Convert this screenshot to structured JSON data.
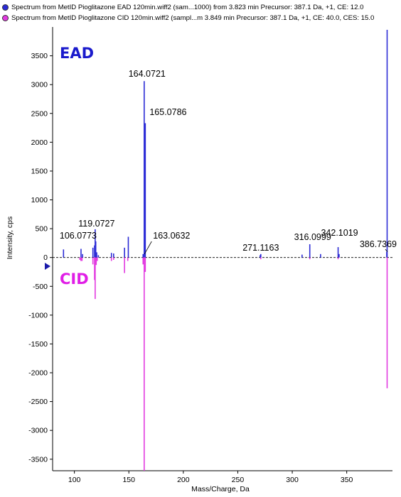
{
  "legend": [
    {
      "text": "Spectrum from MetID Pioglitazone EAD 120min.wiff2 (sam...1000) from 3.823 min Precursor: 387.1 Da, +1, CE: 12.0",
      "color": "#2b2bd6"
    },
    {
      "text": "Spectrum from MetID Pioglitazone CID 120min.wiff2 (sampl...m 3.849 min Precursor: 387.1 Da, +1, CE: 40.0, CES: 15.0",
      "color": "#e23ae0"
    }
  ],
  "labels": {
    "ead": "EAD",
    "cid": "CID"
  },
  "colors": {
    "ead": "#2b2bd6",
    "cid": "#e23ae0",
    "ead_label": "#1a1acc",
    "cid_label": "#e01ee6"
  },
  "chart_data": {
    "type": "bar",
    "xlabel": "Mass/Charge, Da",
    "ylabel": "Intensity, cps",
    "xlim": [
      80,
      392
    ],
    "ylim": [
      -3700,
      4000
    ],
    "xticks": [
      100,
      150,
      200,
      250,
      300,
      350
    ],
    "yticks": [
      3500,
      3000,
      2500,
      2000,
      1500,
      1000,
      500,
      0,
      -500,
      -1000,
      -1500,
      -2000,
      -2500,
      -3000,
      -3500
    ],
    "series": [
      {
        "name": "EAD",
        "peaks": [
          {
            "mz": 90.0,
            "i": 140
          },
          {
            "mz": 106.0773,
            "i": 150
          },
          {
            "mz": 107.5,
            "i": 60
          },
          {
            "mz": 117.0,
            "i": 170
          },
          {
            "mz": 118.5,
            "i": 210
          },
          {
            "mz": 119.0727,
            "i": 490
          },
          {
            "mz": 119.6,
            "i": 280
          },
          {
            "mz": 120.5,
            "i": 90
          },
          {
            "mz": 122.0,
            "i": 40
          },
          {
            "mz": 134.0,
            "i": 80
          },
          {
            "mz": 136.0,
            "i": 70
          },
          {
            "mz": 146.0,
            "i": 170
          },
          {
            "mz": 149.5,
            "i": 360
          },
          {
            "mz": 163.0632,
            "i": 60
          },
          {
            "mz": 164.0721,
            "i": 3060
          },
          {
            "mz": 165.0786,
            "i": 2330
          },
          {
            "mz": 270.5,
            "i": 40
          },
          {
            "mz": 271.1163,
            "i": 60
          },
          {
            "mz": 309.0,
            "i": 50
          },
          {
            "mz": 316.0999,
            "i": 230
          },
          {
            "mz": 326.0,
            "i": 60
          },
          {
            "mz": 342.1019,
            "i": 180
          },
          {
            "mz": 343.0,
            "i": 60
          },
          {
            "mz": 386.7369,
            "i": 100
          },
          {
            "mz": 387.1,
            "i": 3950
          }
        ],
        "labelled": [
          {
            "mz": 106.0773,
            "text": "106.0773"
          },
          {
            "mz": 119.0727,
            "text": "119.0727"
          },
          {
            "mz": 163.0632,
            "text": "163.0632"
          },
          {
            "mz": 164.0721,
            "text": "164.0721"
          },
          {
            "mz": 165.0786,
            "text": "165.0786"
          },
          {
            "mz": 271.1163,
            "text": "271.1163"
          },
          {
            "mz": 316.0999,
            "text": "316.0999"
          },
          {
            "mz": 342.1019,
            "text": "342.1019"
          },
          {
            "mz": 386.7369,
            "text": "386.7369"
          }
        ]
      },
      {
        "name": "CID",
        "peaks": [
          {
            "mz": 105.0,
            "i": -40
          },
          {
            "mz": 106.0,
            "i": -60
          },
          {
            "mz": 107.0,
            "i": -60
          },
          {
            "mz": 117.0,
            "i": -120
          },
          {
            "mz": 118.5,
            "i": -390
          },
          {
            "mz": 119.07,
            "i": -720
          },
          {
            "mz": 120.0,
            "i": -130
          },
          {
            "mz": 121.0,
            "i": -60
          },
          {
            "mz": 134.0,
            "i": -60
          },
          {
            "mz": 136.0,
            "i": -40
          },
          {
            "mz": 146.0,
            "i": -270
          },
          {
            "mz": 149.0,
            "i": -60
          },
          {
            "mz": 163.06,
            "i": -120
          },
          {
            "mz": 164.07,
            "i": -3700
          },
          {
            "mz": 165.08,
            "i": -250
          },
          {
            "mz": 271.1,
            "i": -30
          },
          {
            "mz": 316.1,
            "i": -30
          },
          {
            "mz": 342.1,
            "i": -30
          },
          {
            "mz": 387.1,
            "i": -2270
          }
        ]
      }
    ]
  }
}
